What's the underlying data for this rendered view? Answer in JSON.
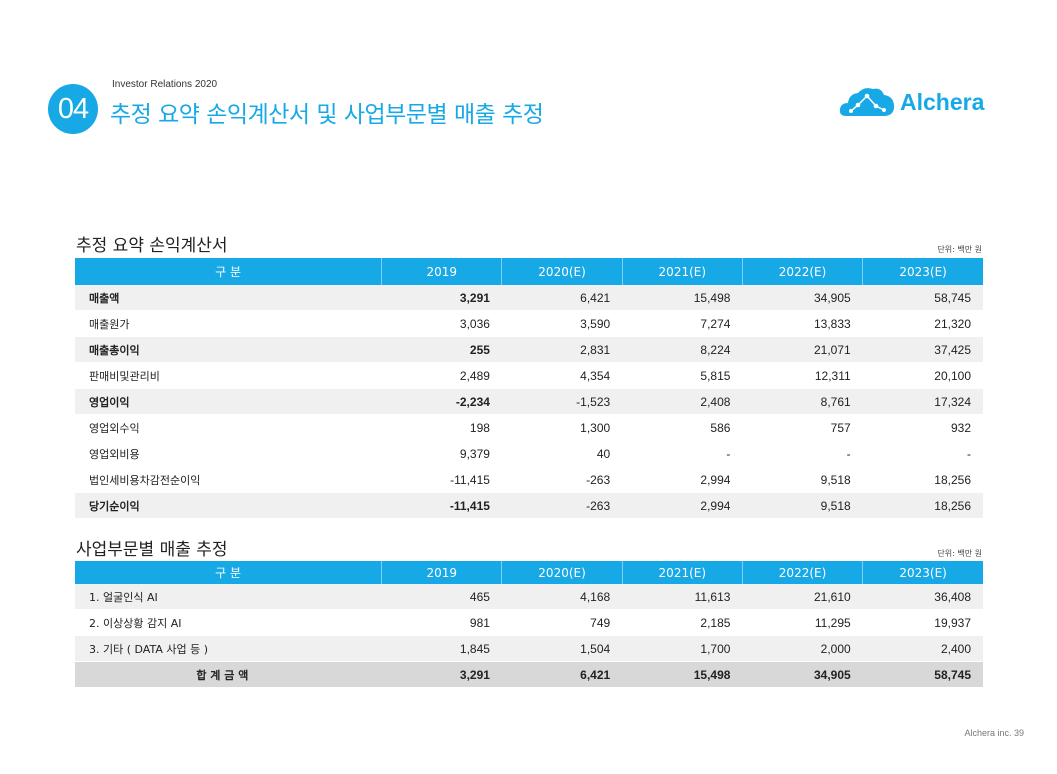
{
  "header": {
    "number": "04",
    "subtitle": "Investor Relations 2020",
    "title": "추정 요약 손익계산서 및 사업부문별 매출 추정",
    "logo_text": "Alchera"
  },
  "income": {
    "title": "추정 요약 손익계산서",
    "unit": "단위: 백만 원",
    "headers": [
      "구 분",
      "2019",
      "2020(E)",
      "2021(E)",
      "2022(E)",
      "2023(E)"
    ],
    "rows": [
      {
        "label": "매출액",
        "values": [
          "3,291",
          "6,421",
          "15,498",
          "34,905",
          "58,745"
        ]
      },
      {
        "label": "매출원가",
        "values": [
          "3,036",
          "3,590",
          "7,274",
          "13,833",
          "21,320"
        ]
      },
      {
        "label": "매출총이익",
        "values": [
          "255",
          "2,831",
          "8,224",
          "21,071",
          "37,425"
        ]
      },
      {
        "label": "판매비및관리비",
        "values": [
          "2,489",
          "4,354",
          "5,815",
          "12,311",
          "20,100"
        ]
      },
      {
        "label": "영업이익",
        "values": [
          "-2,234",
          "-1,523",
          "2,408",
          "8,761",
          "17,324"
        ]
      },
      {
        "label": "영업외수익",
        "values": [
          "198",
          "1,300",
          "586",
          "757",
          "932"
        ]
      },
      {
        "label": "영업외비용",
        "values": [
          "9,379",
          "40",
          "-",
          "-",
          "-"
        ]
      },
      {
        "label": "법인세비용차감전순이익",
        "values": [
          "-11,415",
          "-263",
          "2,994",
          "9,518",
          "18,256"
        ]
      },
      {
        "label": "당기순이익",
        "values": [
          "-11,415",
          "-263",
          "2,994",
          "9,518",
          "18,256"
        ]
      }
    ]
  },
  "segment": {
    "title": "사업부문별 매출 추정",
    "unit": "단위: 백만 원",
    "headers": [
      "구 분",
      "2019",
      "2020(E)",
      "2021(E)",
      "2022(E)",
      "2023(E)"
    ],
    "rows": [
      {
        "label": "1. 얼굴인식 AI",
        "values": [
          "465",
          "4,168",
          "11,613",
          "21,610",
          "36,408"
        ]
      },
      {
        "label": "2. 이상상황 감지 AI",
        "values": [
          "981",
          "749",
          "2,185",
          "11,295",
          "19,937"
        ]
      },
      {
        "label": "3.  기타 ( DATA 사업 등 )",
        "values": [
          "1,845",
          "1,504",
          "1,700",
          "2,000",
          "2,400"
        ]
      }
    ],
    "total": {
      "label": "합 계 금 액",
      "values": [
        "3,291",
        "6,421",
        "15,498",
        "34,905",
        "58,745"
      ]
    }
  },
  "footer": {
    "text": "Alchera inc.  39"
  },
  "colors": {
    "accent": "#17a9e6",
    "shade": "#f0f0f0",
    "total": "#d8d8d8"
  }
}
